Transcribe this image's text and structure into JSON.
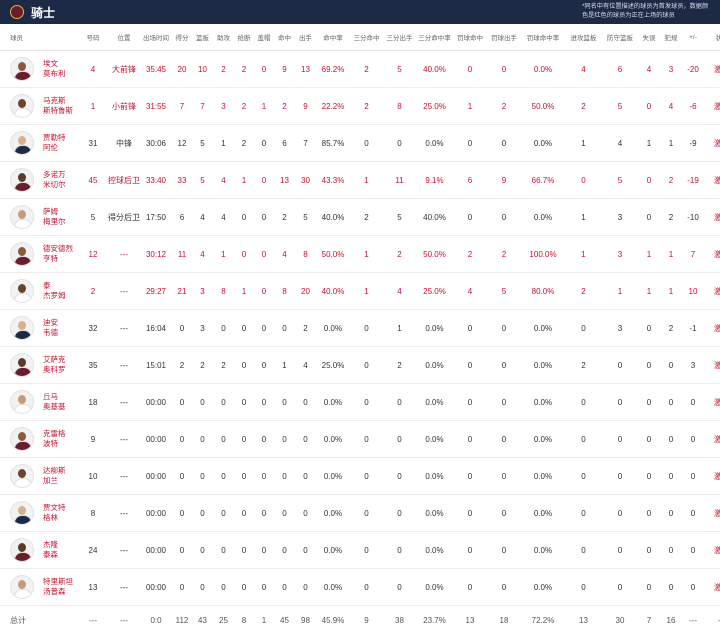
{
  "header": {
    "team_name": "骑士",
    "note": "*同名中有位置描述的球员为首发球员，数据颜色是红色的球员为正在上场的球员"
  },
  "columns": [
    "球员",
    "号码",
    "位置",
    "出场时间",
    "得分",
    "篮板",
    "助攻",
    "抢断",
    "盖帽",
    "命中",
    "出手",
    "命中率",
    "三分命中",
    "三分出手",
    "三分命中率",
    "罚球命中",
    "罚球出手",
    "罚球命中率",
    "进攻篮板",
    "防守篮板",
    "失误",
    "犯规",
    "+/-",
    "状态"
  ],
  "players": [
    {
      "name1": "埃文",
      "name2": "莫布利",
      "active": true,
      "number": "4",
      "position": "大前锋",
      "cells": [
        "35:45",
        "20",
        "10",
        "2",
        "2",
        "0",
        "9",
        "13",
        "69.2%",
        "2",
        "5",
        "40.0%",
        "0",
        "0",
        "0.0%",
        "4",
        "6",
        "4",
        "3",
        "-20"
      ],
      "status": "激活"
    },
    {
      "name1": "马克斯",
      "name2": "斯特鲁斯",
      "active": true,
      "number": "1",
      "position": "小前锋",
      "cells": [
        "31:55",
        "7",
        "7",
        "3",
        "2",
        "1",
        "2",
        "9",
        "22.2%",
        "2",
        "8",
        "25.0%",
        "1",
        "2",
        "50.0%",
        "2",
        "5",
        "0",
        "4",
        "-6"
      ],
      "status": "激活"
    },
    {
      "name1": "贾勒特",
      "name2": "阿伦",
      "active": false,
      "number": "31",
      "position": "中锋",
      "cells": [
        "30:06",
        "12",
        "5",
        "1",
        "2",
        "0",
        "6",
        "7",
        "85.7%",
        "0",
        "0",
        "0.0%",
        "0",
        "0",
        "0.0%",
        "1",
        "4",
        "1",
        "1",
        "-9"
      ],
      "status": "激活"
    },
    {
      "name1": "多诺万",
      "name2": "米切尔",
      "active": true,
      "number": "45",
      "position": "控球后卫",
      "cells": [
        "33:40",
        "33",
        "5",
        "4",
        "1",
        "0",
        "13",
        "30",
        "43.3%",
        "1",
        "11",
        "9.1%",
        "6",
        "9",
        "66.7%",
        "0",
        "5",
        "0",
        "2",
        "-19"
      ],
      "status": "激活"
    },
    {
      "name1": "萨姆",
      "name2": "梅里尔",
      "active": false,
      "number": "5",
      "position": "得分后卫",
      "cells": [
        "17:50",
        "6",
        "4",
        "4",
        "0",
        "0",
        "2",
        "5",
        "40.0%",
        "2",
        "5",
        "40.0%",
        "0",
        "0",
        "0.0%",
        "1",
        "3",
        "0",
        "2",
        "-10"
      ],
      "status": "激活"
    },
    {
      "name1": "德安德烈",
      "name2": "亨特",
      "active": true,
      "number": "12",
      "position": "---",
      "cells": [
        "30:12",
        "11",
        "4",
        "1",
        "0",
        "0",
        "4",
        "8",
        "50.0%",
        "1",
        "2",
        "50.0%",
        "2",
        "2",
        "100.0%",
        "1",
        "3",
        "1",
        "1",
        "7"
      ],
      "status": "激活"
    },
    {
      "name1": "泰",
      "name2": "杰罗姆",
      "active": true,
      "number": "2",
      "position": "---",
      "cells": [
        "29:27",
        "21",
        "3",
        "8",
        "1",
        "0",
        "8",
        "20",
        "40.0%",
        "1",
        "4",
        "25.0%",
        "4",
        "5",
        "80.0%",
        "2",
        "1",
        "1",
        "1",
        "10"
      ],
      "status": "激活"
    },
    {
      "name1": "迪安",
      "name2": "韦德",
      "active": false,
      "number": "32",
      "position": "---",
      "cells": [
        "16:04",
        "0",
        "3",
        "0",
        "0",
        "0",
        "0",
        "2",
        "0.0%",
        "0",
        "1",
        "0.0%",
        "0",
        "0",
        "0.0%",
        "0",
        "3",
        "0",
        "2",
        "-1"
      ],
      "status": "激活"
    },
    {
      "name1": "艾萨克",
      "name2": "奥科罗",
      "active": false,
      "number": "35",
      "position": "---",
      "cells": [
        "15:01",
        "2",
        "2",
        "2",
        "0",
        "0",
        "1",
        "4",
        "25.0%",
        "0",
        "2",
        "0.0%",
        "0",
        "0",
        "0.0%",
        "2",
        "0",
        "0",
        "0",
        "3"
      ],
      "status": "激活"
    },
    {
      "name1": "丘马",
      "name2": "奥基基",
      "active": false,
      "number": "18",
      "position": "---",
      "cells": [
        "00:00",
        "0",
        "0",
        "0",
        "0",
        "0",
        "0",
        "0",
        "0.0%",
        "0",
        "0",
        "0.0%",
        "0",
        "0",
        "0.0%",
        "0",
        "0",
        "0",
        "0",
        "0"
      ],
      "status": "激活"
    },
    {
      "name1": "克雷格",
      "name2": "波特",
      "active": false,
      "number": "9",
      "position": "---",
      "cells": [
        "00:00",
        "0",
        "0",
        "0",
        "0",
        "0",
        "0",
        "0",
        "0.0%",
        "0",
        "0",
        "0.0%",
        "0",
        "0",
        "0.0%",
        "0",
        "0",
        "0",
        "0",
        "0"
      ],
      "status": "激活"
    },
    {
      "name1": "达柳斯",
      "name2": "加兰",
      "active": false,
      "number": "10",
      "position": "---",
      "cells": [
        "00:00",
        "0",
        "0",
        "0",
        "0",
        "0",
        "0",
        "0",
        "0.0%",
        "0",
        "0",
        "0.0%",
        "0",
        "0",
        "0.0%",
        "0",
        "0",
        "0",
        "0",
        "0"
      ],
      "status": "激活"
    },
    {
      "name1": "贾文特",
      "name2": "格林",
      "active": false,
      "number": "8",
      "position": "---",
      "cells": [
        "00:00",
        "0",
        "0",
        "0",
        "0",
        "0",
        "0",
        "0",
        "0.0%",
        "0",
        "0",
        "0.0%",
        "0",
        "0",
        "0.0%",
        "0",
        "0",
        "0",
        "0",
        "0"
      ],
      "status": "激活"
    },
    {
      "name1": "杰隆",
      "name2": "泰森",
      "active": false,
      "number": "24",
      "position": "---",
      "cells": [
        "00:00",
        "0",
        "0",
        "0",
        "0",
        "0",
        "0",
        "0",
        "0.0%",
        "0",
        "0",
        "0.0%",
        "0",
        "0",
        "0.0%",
        "0",
        "0",
        "0",
        "0",
        "0"
      ],
      "status": "激活"
    },
    {
      "name1": "特里斯坦",
      "name2": "汤普森",
      "active": false,
      "number": "13",
      "position": "---",
      "cells": [
        "00:00",
        "0",
        "0",
        "0",
        "0",
        "0",
        "0",
        "0",
        "0.0%",
        "0",
        "0",
        "0.0%",
        "0",
        "0",
        "0.0%",
        "0",
        "0",
        "0",
        "0",
        "0"
      ],
      "status": "激活"
    }
  ],
  "totals": {
    "label": "总计",
    "cells": [
      "---",
      "---",
      "0:0",
      "112",
      "43",
      "25",
      "8",
      "1",
      "45",
      "98",
      "45.9%",
      "9",
      "38",
      "23.7%",
      "13",
      "18",
      "72.2%",
      "13",
      "30",
      "7",
      "16",
      "---",
      "---"
    ]
  },
  "colors": {
    "header_bg": "#1d2a45",
    "active_red": "#c8102e",
    "logo": "#6b1d2b"
  }
}
